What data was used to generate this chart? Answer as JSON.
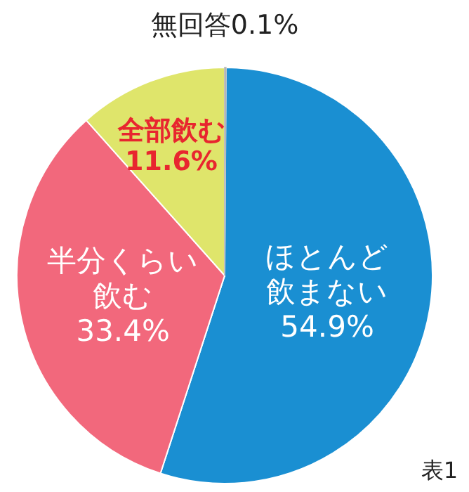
{
  "chart_data": {
    "type": "pie",
    "categories": [
      "無回答",
      "ほとんど飲まない",
      "半分くらい飲む",
      "全部飲む"
    ],
    "values": [
      0.1,
      54.9,
      33.4,
      11.6
    ],
    "colors": [
      "#b5b5b5",
      "#1a8fd2",
      "#f2687c",
      "#dfe56b"
    ],
    "value_labels": [
      "0.1%",
      "54.9%",
      "33.4%",
      "11.6%"
    ],
    "legend": false,
    "annotations": [
      "表1"
    ]
  }
}
